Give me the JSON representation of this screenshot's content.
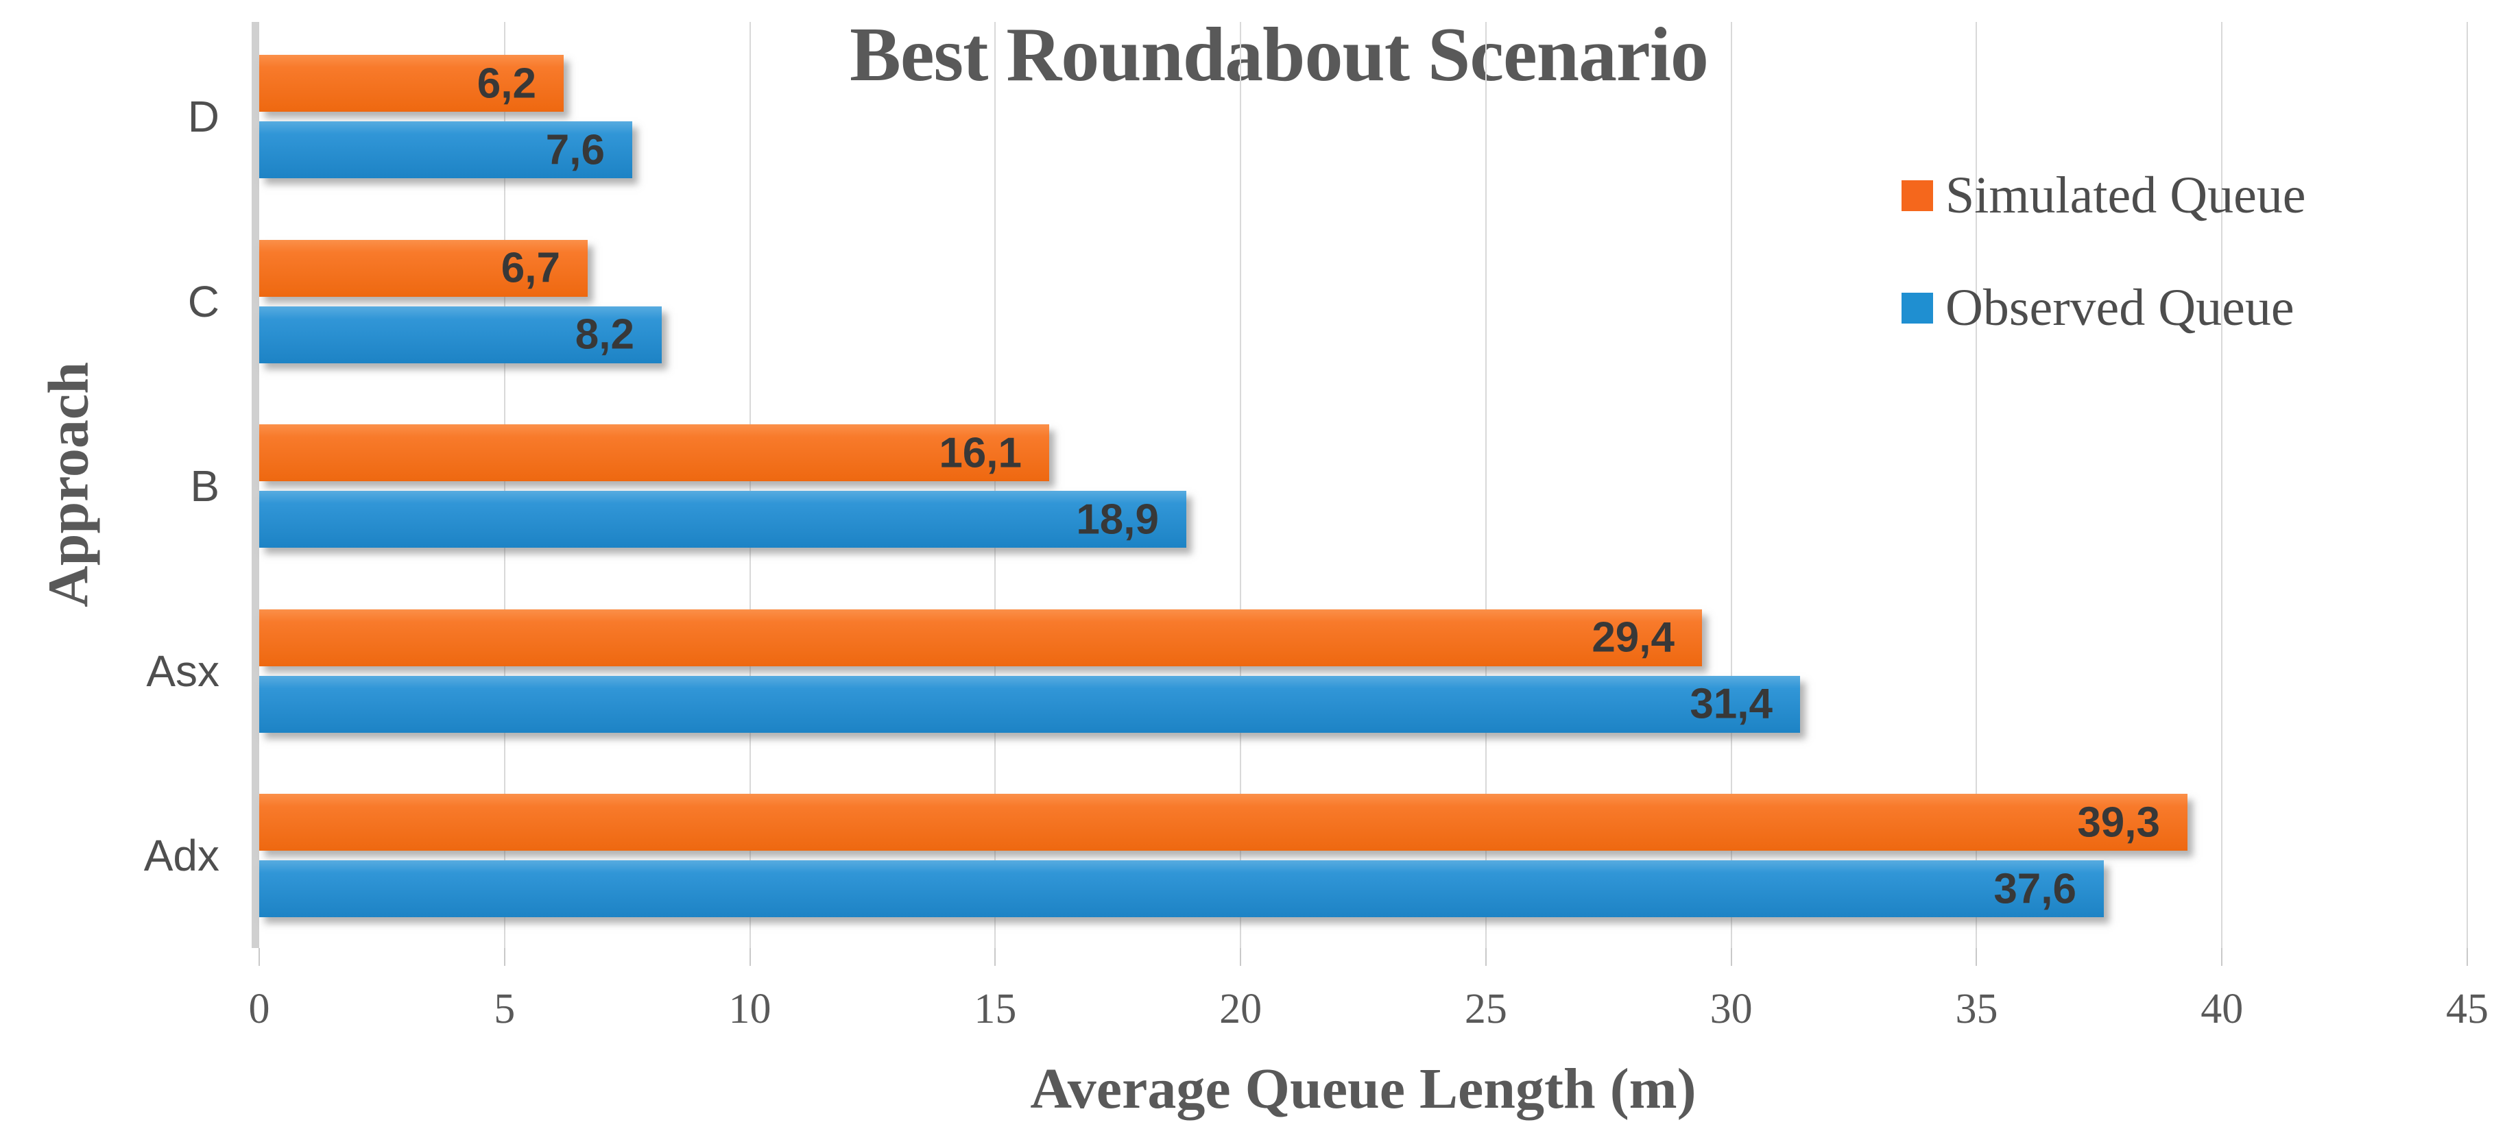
{
  "chart_data": {
    "type": "bar",
    "orientation": "horizontal",
    "title": "Best Roundabout Scenario",
    "xlabel": "Average Queue Length (m)",
    "ylabel": "Approach",
    "categories": [
      "D",
      "C",
      "B",
      "Asx",
      "Adx"
    ],
    "series": [
      {
        "name": "Simulated Queue",
        "values": [
          6.2,
          6.7,
          16.1,
          29.4,
          39.3
        ],
        "labels": [
          "6,2",
          "6,7",
          "16,1",
          "29,4",
          "39,3"
        ]
      },
      {
        "name": "Observed Queue",
        "values": [
          7.6,
          8.2,
          18.9,
          31.4,
          37.6
        ],
        "labels": [
          "7,6",
          "8,2",
          "18,9",
          "31,4",
          "37,6"
        ]
      }
    ],
    "xlim": [
      0,
      45
    ],
    "xticks": [
      "0",
      "5",
      "10",
      "15",
      "20",
      "25",
      "30",
      "35",
      "40",
      "45"
    ],
    "grid": true,
    "legend_position": "right-top"
  },
  "styles": {
    "background": "#FFFFFF",
    "title_color": "#595959",
    "axis_title_color": "#595959",
    "tick_label_color": "#595959",
    "category_label_color": "#4F4F4F",
    "data_label_color": "#383838",
    "legend_text_color": "#4D4D4D",
    "gridline_color": "#D9D9D9",
    "axis_line_color": "#D0D0D0",
    "tick_mark_color": "#C9C9C9",
    "series_gradients": [
      [
        "#FB9049",
        "#F87A2B",
        "#EE6810"
      ],
      [
        "#58ACE0",
        "#3196D7",
        "#1D83C5"
      ]
    ],
    "legend_marker_colors": [
      "#F5671C",
      "#1F8FD1"
    ]
  }
}
